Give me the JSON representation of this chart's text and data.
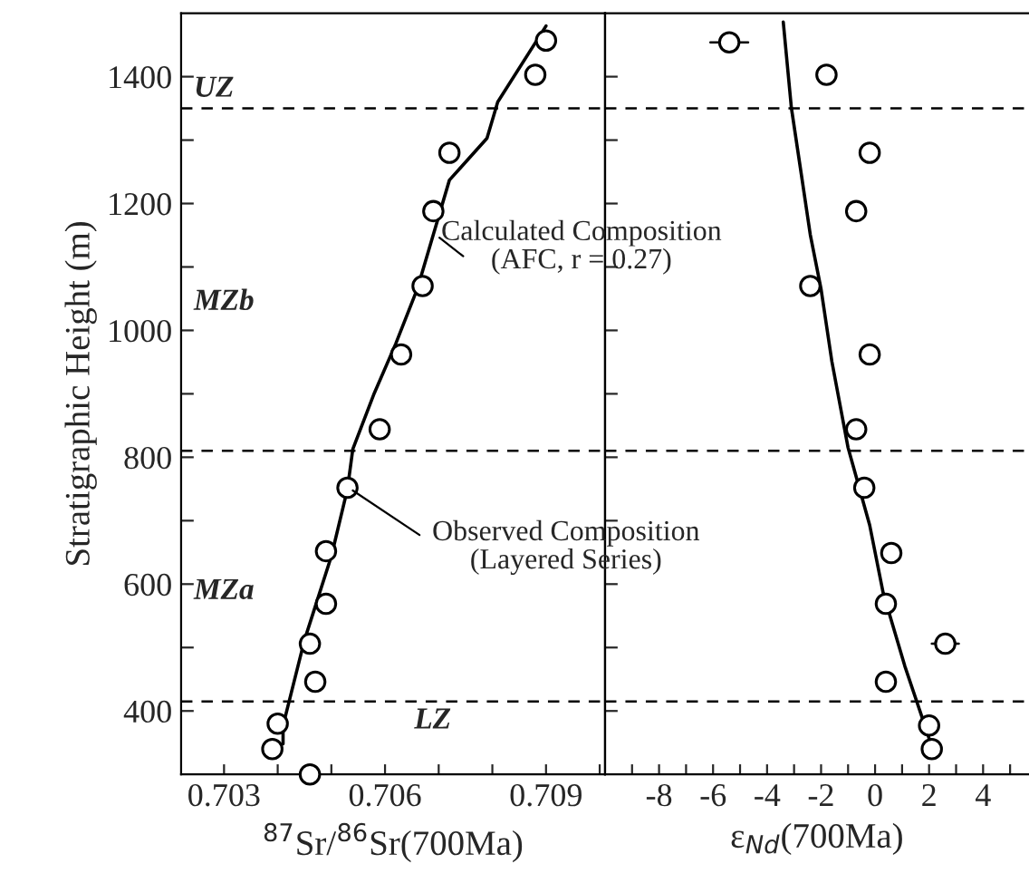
{
  "chart_data": [
    {
      "type": "scatter",
      "ylabel": "Stratigraphic Height (m)",
      "xlabel": "$^{87}$Sr/$^{86}$Sr(700Ma)",
      "xlim": [
        0.7022,
        0.7101
      ],
      "ylim": [
        300,
        1500
      ],
      "xticks": [
        {
          "value": 0.703,
          "label": "0.703"
        },
        {
          "value": 0.704,
          "label": null
        },
        {
          "value": 0.705,
          "label": null
        },
        {
          "value": 0.706,
          "label": "0.706"
        },
        {
          "value": 0.707,
          "label": null
        },
        {
          "value": 0.708,
          "label": null
        },
        {
          "value": 0.709,
          "label": "0.709"
        },
        {
          "value": 0.71,
          "label": null
        }
      ],
      "yticks": [
        {
          "value": 400,
          "label": "400"
        },
        {
          "value": 500,
          "label": null
        },
        {
          "value": 600,
          "label": "600"
        },
        {
          "value": 700,
          "label": null
        },
        {
          "value": 800,
          "label": "800"
        },
        {
          "value": 900,
          "label": null
        },
        {
          "value": 1000,
          "label": "1000"
        },
        {
          "value": 1100,
          "label": null
        },
        {
          "value": 1200,
          "label": "1200"
        },
        {
          "value": 1300,
          "label": null
        },
        {
          "value": 1400,
          "label": "1400"
        }
      ],
      "grid": false,
      "legend": false,
      "ref_lines": [
        {
          "axis": "y",
          "value": 1350,
          "line_style": "dashed"
        },
        {
          "axis": "y",
          "value": 810,
          "line_style": "dashed"
        },
        {
          "axis": "y",
          "value": 415,
          "line_style": "dashed"
        }
      ],
      "annotations": [
        "UZ",
        "MZb",
        "MZa",
        "LZ",
        {
          "text": "Calculated Composition\n(AFC, r = 0.27)",
          "x": 0.70694,
          "y": 1151
        },
        {
          "text": "Observed Composition\n(Layered Series)",
          "x": 0.70532,
          "y": 752
        }
      ],
      "series": [
        {
          "marker": "circle",
          "color": "#000000",
          "x": [
            0.709,
            0.7088,
            0.7072,
            0.7069,
            0.7067,
            0.7063,
            0.7059,
            0.7053,
            0.7049,
            0.7049,
            0.7046,
            0.7047,
            0.704,
            0.7039,
            0.7046
          ],
          "values": [
            1457,
            1403,
            1280,
            1188,
            1070,
            962,
            844,
            752,
            652,
            569,
            506,
            446,
            380,
            340,
            300
          ]
        },
        {
          "type": "line",
          "marker": "none",
          "line_style": "solid",
          "color": "#000000",
          "x": [
            0.709,
            0.7081,
            0.7079,
            0.7072,
            0.7069,
            0.7066,
            0.7062,
            0.7058,
            0.7054,
            0.7053,
            0.705,
            0.7045,
            0.7041,
            0.7041
          ],
          "values": [
            1480,
            1360,
            1303,
            1237,
            1151,
            1065,
            979,
            901,
            813,
            750,
            644,
            512,
            377,
            348
          ]
        }
      ]
    },
    {
      "type": "scatter",
      "xlabel": "ε$_{Nd}$(700Ma)",
      "tick_labels": "x",
      "xlim": [
        -10,
        5.7
      ],
      "ylim": [
        300,
        1500
      ],
      "xticks": [
        {
          "value": -9,
          "label": null
        },
        -8,
        {
          "value": -7,
          "label": null
        },
        -6,
        {
          "value": -5,
          "label": null
        },
        -4,
        {
          "value": -3,
          "label": null
        },
        -2,
        {
          "value": -1,
          "label": null
        },
        0,
        {
          "value": 1,
          "label": null
        },
        2,
        {
          "value": 3,
          "label": null
        },
        4,
        {
          "value": 5,
          "label": null
        }
      ],
      "yticks": [
        {
          "value": 400,
          "label": null
        },
        {
          "value": 500,
          "label": null
        },
        {
          "value": 600,
          "label": null
        },
        {
          "value": 700,
          "label": null
        },
        {
          "value": 800,
          "label": null
        },
        {
          "value": 900,
          "label": null
        },
        {
          "value": 1000,
          "label": null
        },
        {
          "value": 1100,
          "label": null
        },
        {
          "value": 1200,
          "label": null
        },
        {
          "value": 1300,
          "label": null
        },
        {
          "value": 1400,
          "label": null
        }
      ],
      "grid": false,
      "legend": false,
      "ref_lines": [
        {
          "axis": "y",
          "value": 1350,
          "line_style": "dashed"
        },
        {
          "axis": "y",
          "value": 810,
          "line_style": "dashed"
        },
        {
          "axis": "y",
          "value": 415,
          "line_style": "dashed"
        }
      ],
      "series": [
        {
          "marker": "circle",
          "color": "#000000",
          "x": [
            -5.4,
            -1.8,
            -0.2,
            -0.7,
            -2.4,
            -0.2,
            -0.7,
            -0.4,
            0.6,
            0.4,
            2.6,
            0.4,
            2.0,
            2.1
          ],
          "values": [
            1454,
            1403,
            1280,
            1188,
            1070,
            962,
            844,
            752,
            649,
            569,
            506,
            446,
            377,
            340
          ],
          "xerrors": [
            0.7,
            null,
            null,
            null,
            null,
            null,
            null,
            null,
            null,
            null,
            0.5,
            null,
            null,
            null
          ]
        },
        {
          "type": "line",
          "marker": "none",
          "line_style": "solid",
          "color": "#000000",
          "x": [
            -3.4,
            -3.1,
            -2.7,
            -2.4,
            -2.0,
            -1.6,
            -1.0,
            -0.2,
            0.3,
            1.1,
            2.0,
            2.2
          ],
          "values": [
            1486,
            1351,
            1237,
            1151,
            1065,
            951,
            815,
            693,
            586,
            471,
            357,
            334
          ]
        }
      ]
    }
  ]
}
